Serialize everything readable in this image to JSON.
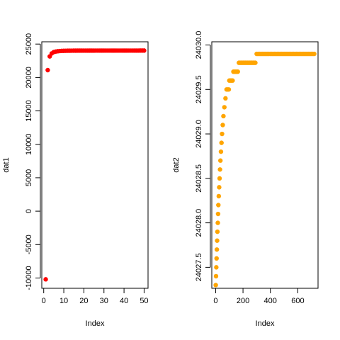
{
  "chart_data": [
    {
      "type": "scatter",
      "xlabel": "Index",
      "ylabel": "dat1",
      "xlim": [
        -0.96,
        51.96
      ],
      "ylim": [
        -11540,
        25340
      ],
      "x_ticks": [
        0,
        10,
        20,
        30,
        40,
        50
      ],
      "y_ticks": [
        -10000,
        -5000,
        0,
        5000,
        10000,
        15000,
        20000,
        25000
      ],
      "color": "#ff0000",
      "points": [
        [
          1,
          -10200
        ],
        [
          2,
          21100
        ],
        [
          3,
          23150
        ],
        [
          4,
          23600
        ],
        [
          5,
          23800
        ],
        [
          6,
          23880
        ],
        [
          7,
          23930
        ],
        [
          8,
          23960
        ],
        [
          9,
          23980
        ],
        [
          10,
          23990
        ],
        [
          11,
          24000
        ],
        [
          12,
          24005
        ],
        [
          13,
          24010
        ],
        [
          14,
          24012
        ],
        [
          15,
          24015
        ],
        [
          16,
          24016
        ],
        [
          17,
          24017
        ],
        [
          18,
          24018
        ],
        [
          19,
          24019
        ],
        [
          20,
          24020
        ],
        [
          21,
          24021
        ],
        [
          22,
          24022
        ],
        [
          23,
          24022
        ],
        [
          24,
          24023
        ],
        [
          25,
          24023
        ],
        [
          26,
          24024
        ],
        [
          27,
          24024
        ],
        [
          28,
          24024
        ],
        [
          29,
          24025
        ],
        [
          30,
          24025
        ],
        [
          31,
          24025
        ],
        [
          32,
          24025
        ],
        [
          33,
          24026
        ],
        [
          34,
          24026
        ],
        [
          35,
          24026
        ],
        [
          36,
          24026
        ],
        [
          37,
          24026
        ],
        [
          38,
          24026
        ],
        [
          39,
          24027
        ],
        [
          40,
          24027
        ],
        [
          41,
          24027
        ],
        [
          42,
          24027
        ],
        [
          43,
          24027
        ],
        [
          44,
          24027
        ],
        [
          45,
          24027
        ],
        [
          46,
          24027
        ],
        [
          47,
          24027
        ],
        [
          48,
          24028
        ],
        [
          49,
          24028
        ],
        [
          50,
          24028
        ]
      ]
    },
    {
      "type": "scatter",
      "xlabel": "Index",
      "ylabel": "dat2",
      "xlim": [
        -28,
        748
      ],
      "ylim": [
        24027.264,
        24030.036
      ],
      "x_ticks": [
        0,
        200,
        400,
        600
      ],
      "y_ticks": [
        24027.5,
        24028.0,
        24028.5,
        24029.0,
        24029.5,
        24030.0
      ],
      "y_tick_labels": [
        "24027.5",
        "24028.0",
        "24028.5",
        "24029.0",
        "24029.5",
        "24030.0"
      ],
      "color": "#ffa500",
      "points": [
        [
          1,
          24027.3
        ],
        [
          3,
          24027.4
        ],
        [
          5,
          24027.5
        ],
        [
          7,
          24027.6
        ],
        [
          9,
          24027.7
        ],
        [
          11,
          24027.8
        ],
        [
          13,
          24027.9
        ],
        [
          16,
          24028.0
        ],
        [
          18,
          24028.1
        ],
        [
          20,
          24028.2
        ],
        [
          23,
          24028.3
        ],
        [
          26,
          24028.4
        ],
        [
          29,
          24028.5
        ],
        [
          32,
          24028.6
        ],
        [
          35,
          24028.7
        ],
        [
          39,
          24028.8
        ],
        [
          43,
          24028.9
        ],
        [
          47,
          24029.0
        ],
        [
          52,
          24029.1
        ],
        [
          57,
          24029.2
        ],
        [
          64,
          24029.3
        ],
        [
          72,
          24029.4
        ],
        [
          80,
          24029.5
        ],
        [
          88,
          24029.5
        ],
        [
          96,
          24029.5
        ],
        [
          100,
          24029.6
        ],
        [
          108,
          24029.6
        ],
        [
          116,
          24029.6
        ],
        [
          124,
          24029.6
        ],
        [
          130,
          24029.7
        ],
        [
          138,
          24029.7
        ],
        [
          146,
          24029.7
        ],
        [
          154,
          24029.7
        ],
        [
          162,
          24029.7
        ],
        [
          170,
          24029.8
        ],
        [
          178,
          24029.8
        ],
        [
          186,
          24029.8
        ],
        [
          194,
          24029.8
        ],
        [
          202,
          24029.8
        ],
        [
          210,
          24029.8
        ],
        [
          218,
          24029.8
        ],
        [
          226,
          24029.8
        ],
        [
          234,
          24029.8
        ],
        [
          242,
          24029.8
        ],
        [
          250,
          24029.8
        ],
        [
          258,
          24029.8
        ],
        [
          266,
          24029.8
        ],
        [
          274,
          24029.8
        ],
        [
          282,
          24029.8
        ],
        [
          290,
          24029.8
        ],
        [
          300,
          24029.9
        ],
        [
          310,
          24029.9
        ],
        [
          320,
          24029.9
        ],
        [
          330,
          24029.9
        ],
        [
          340,
          24029.9
        ],
        [
          350,
          24029.9
        ],
        [
          360,
          24029.9
        ],
        [
          370,
          24029.9
        ],
        [
          380,
          24029.9
        ],
        [
          390,
          24029.9
        ],
        [
          400,
          24029.9
        ],
        [
          410,
          24029.9
        ],
        [
          420,
          24029.9
        ],
        [
          430,
          24029.9
        ],
        [
          440,
          24029.9
        ],
        [
          450,
          24029.9
        ],
        [
          460,
          24029.9
        ],
        [
          470,
          24029.9
        ],
        [
          480,
          24029.9
        ],
        [
          490,
          24029.9
        ],
        [
          500,
          24029.9
        ],
        [
          510,
          24029.9
        ],
        [
          520,
          24029.9
        ],
        [
          530,
          24029.9
        ],
        [
          540,
          24029.9
        ],
        [
          550,
          24029.9
        ],
        [
          560,
          24029.9
        ],
        [
          570,
          24029.9
        ],
        [
          580,
          24029.9
        ],
        [
          590,
          24029.9
        ],
        [
          600,
          24029.9
        ],
        [
          610,
          24029.9
        ],
        [
          620,
          24029.9
        ],
        [
          630,
          24029.9
        ],
        [
          640,
          24029.9
        ],
        [
          650,
          24029.9
        ],
        [
          660,
          24029.9
        ],
        [
          670,
          24029.9
        ],
        [
          680,
          24029.9
        ],
        [
          690,
          24029.9
        ],
        [
          700,
          24029.9
        ],
        [
          710,
          24029.9
        ],
        [
          720,
          24029.9
        ]
      ]
    }
  ]
}
